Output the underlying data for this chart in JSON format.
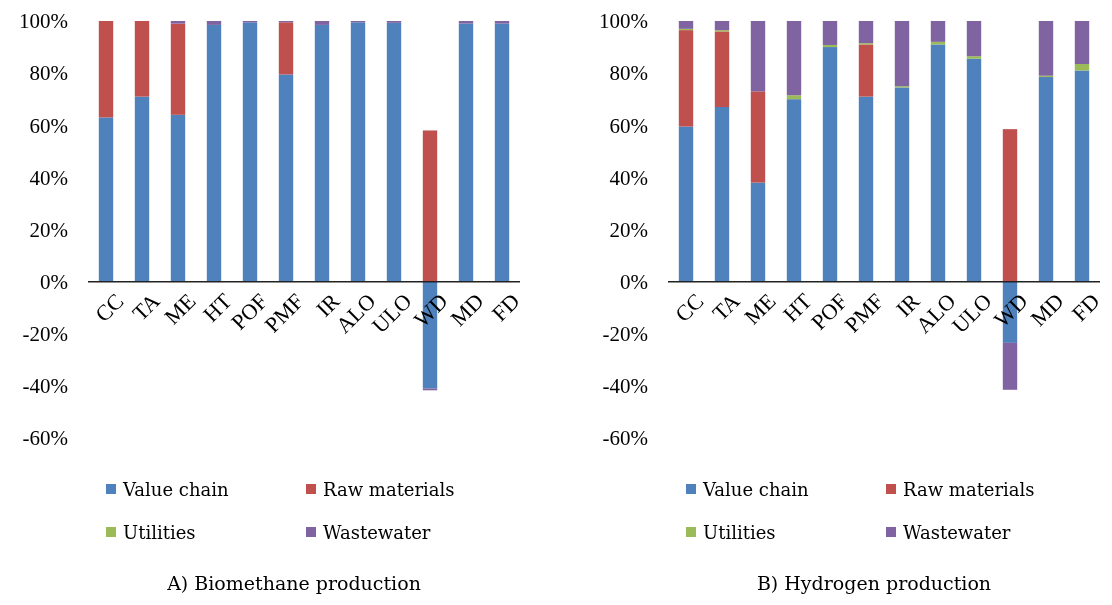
{
  "chart_data": [
    {
      "type": "bar",
      "title": "A) Biomethane production",
      "stacked": true,
      "legend": "bottom",
      "categories": [
        "CC",
        "TA",
        "ME",
        "HT",
        "POF",
        "PMF",
        "IR",
        "ALO",
        "ULO",
        "WD",
        "MD",
        "FD"
      ],
      "ylim": [
        -60,
        100
      ],
      "yticks": [
        {
          "value": -60,
          "label": "-60%"
        },
        {
          "value": -40,
          "label": "-40%"
        },
        {
          "value": -20,
          "label": "-20%"
        },
        {
          "value": 0,
          "label": "0%"
        },
        {
          "value": 20,
          "label": "20%"
        },
        {
          "value": 40,
          "label": "40%"
        },
        {
          "value": 60,
          "label": "60%"
        },
        {
          "value": 80,
          "label": "80%"
        },
        {
          "value": 100,
          "label": "100%"
        }
      ],
      "series": [
        {
          "name": "Value chain",
          "color": "#4f81bd",
          "values": [
            63,
            71,
            64,
            98.5,
            99.5,
            79.5,
            98.5,
            99.5,
            99.3,
            -41,
            99,
            99
          ]
        },
        {
          "name": "Raw materials",
          "color": "#c0504d",
          "values": [
            37,
            29,
            35,
            0,
            0,
            20,
            0,
            0,
            0,
            58,
            0,
            0
          ]
        },
        {
          "name": "Utilities",
          "color": "#9bbb59",
          "values": [
            0,
            0,
            0,
            0,
            0,
            0,
            0,
            0,
            0,
            0,
            0,
            0
          ]
        },
        {
          "name": "Wastewater",
          "color": "#8064a2",
          "values": [
            0,
            0,
            1,
            1.5,
            0.5,
            0.5,
            1.5,
            0.5,
            0.7,
            -0.7,
            1,
            1
          ]
        }
      ]
    },
    {
      "type": "bar",
      "title": "B) Hydrogen production",
      "stacked": true,
      "legend": "bottom",
      "categories": [
        "CC",
        "TA",
        "ME",
        "HT",
        "POF",
        "PMF",
        "IR",
        "ALO",
        "ULO",
        "WD",
        "MD",
        "FD"
      ],
      "ylim": [
        -60,
        100
      ],
      "yticks": [
        {
          "value": -60,
          "label": "-60%"
        },
        {
          "value": -40,
          "label": "-40%"
        },
        {
          "value": -20,
          "label": "-20%"
        },
        {
          "value": 0,
          "label": "0%"
        },
        {
          "value": 20,
          "label": "20%"
        },
        {
          "value": 40,
          "label": "40%"
        },
        {
          "value": 60,
          "label": "60%"
        },
        {
          "value": 80,
          "label": "80%"
        },
        {
          "value": 100,
          "label": "100%"
        }
      ],
      "series": [
        {
          "name": "Value chain",
          "color": "#4f81bd",
          "values": [
            59.5,
            67,
            38,
            70,
            90,
            71,
            74.5,
            91,
            85.5,
            -23.5,
            78.5,
            81
          ]
        },
        {
          "name": "Raw materials",
          "color": "#c0504d",
          "values": [
            37,
            29,
            35,
            0,
            0,
            20,
            0,
            0,
            0,
            58.5,
            0,
            0
          ]
        },
        {
          "name": "Utilities",
          "color": "#9bbb59",
          "values": [
            0.5,
            0.5,
            0,
            1.5,
            0.8,
            0.5,
            0.5,
            1,
            1,
            0,
            0.5,
            2.5
          ]
        },
        {
          "name": "Wastewater",
          "color": "#8064a2",
          "values": [
            3,
            3.5,
            27,
            28.5,
            9.2,
            8.5,
            25,
            8,
            13.5,
            -18,
            21,
            16.5
          ]
        }
      ]
    }
  ]
}
